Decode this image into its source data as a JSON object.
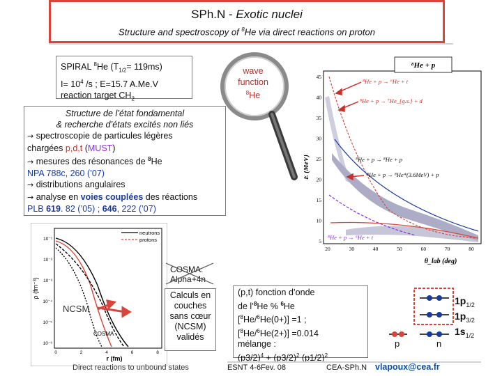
{
  "title": {
    "main": "SPh.N - ",
    "italic": "Exotic nuclei",
    "subtitle_pre": "Structure and spectroscopy of ",
    "subtitle_sup": "8",
    "subtitle_post": "He via direct reactions on proton"
  },
  "beam": {
    "line1_pre": "SPIRAL ",
    "line1_sup": "8",
    "line1_post": "He (T",
    "line1_sub": "1/2",
    "line1_end": "= 119ms)",
    "line2_pre": "I= 10",
    "line2_sup": "4",
    "line2_post": " /s ; E=15.7 A.Me.V",
    "line3_pre": "reaction target CH",
    "line3_sub": "2"
  },
  "wave": {
    "line1": "wave",
    "line2": "function",
    "line3_sup": "8",
    "line3_post": "He"
  },
  "structure": {
    "line1": "Structure de l’état fondamental",
    "line2": "& recherche d’états excités non liés",
    "line3": " spectroscopie de particules légères",
    "line4_pre": "chargées ",
    "line4_pdt": "p,d,t",
    "line4_open": " (",
    "line4_must": "MUST",
    "line4_close": ")",
    "line5_pre": " mesures des résonances de ",
    "line5_sup": "8",
    "line5_post": "He",
    "line6": "NPA 788c, 260 (’07)",
    "line7": " distributions angulaires",
    "line8_pre": " analyse en ",
    "line8_bold": "voies couplées",
    "line8_post": " des réactions",
    "line9_pre": "PLB ",
    "line9_b1": "619",
    "line9_mid": ". 82 (’05) ; ",
    "line9_b2": "646",
    "line9_post": ", 222 (’07)"
  },
  "spectrum": {
    "legend_title": "⁸He + p",
    "label1": "⁸He + p → ⁶He + t",
    "label2": "⁸He + p → ⁷He_{g.s.} + d",
    "label3": "⁸He + p → ⁸He + p",
    "label4": "⁸He + p → ⁸He*(3.6MeV) + p",
    "label5": "⁸He + p → ⁶He + t",
    "ylabel": "E (MeV)",
    "xlabel": "θ_lab (deg)",
    "yticks": [
      "45",
      "40",
      "35",
      "30",
      "25",
      "20",
      "15",
      "10",
      "5"
    ],
    "xticks": [
      "20",
      "30",
      "40",
      "50",
      "60",
      "70",
      "80"
    ]
  },
  "density": {
    "legend_neutrons": "neutrons",
    "legend_protons": "protons",
    "ylabel": "ρ (fm⁻³)",
    "xlabel": "r (fm)",
    "yticks": [
      "10⁻¹",
      "10⁻²",
      "10⁻³",
      "10⁻⁴",
      "10⁻⁵",
      "10⁻⁶"
    ],
    "xticks": [
      "0",
      "2",
      "4",
      "6",
      "8"
    ],
    "cosma_curve_label": "COSMA",
    "caption": "Direct reactions to unbound states"
  },
  "ncsm": "NCSM",
  "cosma": {
    "line1": "COSMA:",
    "line2": "Alpha+4n"
  },
  "calculs": {
    "line1": "Calculs en",
    "line2": "couches",
    "line3": "sans cœur",
    "line4": "(NCSM)",
    "line5": "validés"
  },
  "pt": {
    "line1": "(p,t)  fonction d’onde",
    "line2_pre": "de l’",
    "line2_sup": "8",
    "line2_mid": "He % ",
    "line2_sup2": "6",
    "line2_post": "He",
    "line3_pre": "[",
    "line3_sup": "8",
    "line3_mid": "He/",
    "line3_sup2": "6",
    "line3_post": "He(0+)] =1 ;",
    "line4_pre": "[",
    "line4_sup": "8",
    "line4_mid": "He/",
    "line4_sup2": "6",
    "line4_post": "He(2+)] =0.014",
    "line5": "mélange :",
    "line6_pre": " (p3/2)",
    "line6_sup": "4",
    "line6_mid": "  + (p3/2)",
    "line6_sup2": "2",
    "line6_mid2": " (p1/2)",
    "line6_sup3": "2"
  },
  "orbital": {
    "p": "p",
    "n": "n",
    "lvl1": "1p",
    "lvl1_sub": "1/2",
    "lvl2": "1p",
    "lvl2_sub": "3/2",
    "lvl3": "1s",
    "lvl3_sub": "1/2"
  },
  "footer": {
    "conf": "ESNT 4-6Fev. 08",
    "lab": "CEA-SPh.N",
    "email": "vlapoux@cea.fr"
  },
  "colors": {
    "accent_red": "#d9453a",
    "text_red": "#c8312a",
    "must_purple": "#8a2be2",
    "email_blue": "#0b4ea2"
  }
}
